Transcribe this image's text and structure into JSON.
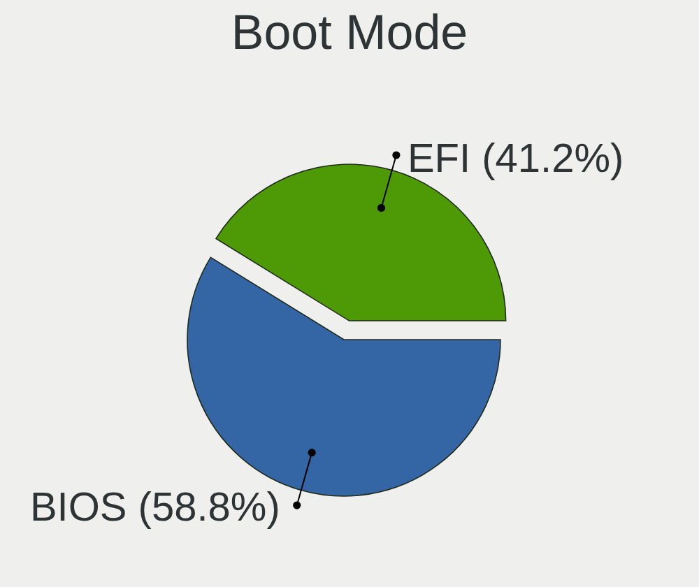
{
  "chart_data": {
    "type": "pie",
    "title": "Boot Mode",
    "categories": [
      "BIOS",
      "EFI"
    ],
    "values": [
      58.8,
      41.2
    ],
    "colors": [
      "#3465a4",
      "#4e9a06"
    ],
    "value_labels": [
      "(58.8%)",
      "(41.2%)"
    ]
  }
}
